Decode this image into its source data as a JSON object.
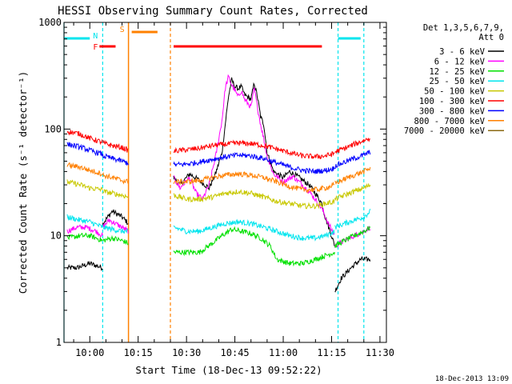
{
  "chart_data": {
    "type": "line",
    "title": "HESSI Observing Summary Count Rates, Corrected",
    "ylabel": "Corrected Count Rate (s⁻¹ detector⁻¹)",
    "xlabel": "Start Time (18-Dec-13 09:52:22)",
    "timestamp": "18-Dec-2013 13:09",
    "y_scale": "log",
    "ylim": [
      1,
      1000
    ],
    "xlim": [
      "09:52",
      "11:32"
    ],
    "y_ticks": [
      {
        "value": 1,
        "label": "1"
      },
      {
        "value": 10,
        "label": "10"
      },
      {
        "value": 100,
        "label": "100"
      },
      {
        "value": 1000,
        "label": "1000"
      }
    ],
    "x_ticks": [
      {
        "time": "10:00",
        "label": "10:00"
      },
      {
        "time": "10:15",
        "label": "10:15"
      },
      {
        "time": "10:30",
        "label": "10:30"
      },
      {
        "time": "10:45",
        "label": "10:45"
      },
      {
        "time": "11:00",
        "label": "11:00"
      },
      {
        "time": "11:15",
        "label": "11:15"
      },
      {
        "time": "11:30",
        "label": "11:30"
      }
    ],
    "legend": {
      "placement": "right",
      "header": [
        "Det 1,3,5,6,7,9,",
        "Att 0"
      ],
      "entries": [
        {
          "label": "3 - 6 keV",
          "color": "#000000"
        },
        {
          "label": "6 - 12 keV",
          "color": "#ff00ff"
        },
        {
          "label": "12 - 25 keV",
          "color": "#00e000"
        },
        {
          "label": "25 - 50 keV",
          "color": "#00e5ee"
        },
        {
          "label": "50 - 100 keV",
          "color": "#c8c800"
        },
        {
          "label": "100 - 300 keV",
          "color": "#ff0000"
        },
        {
          "label": "300 - 800 keV",
          "color": "#0000ff"
        },
        {
          "label": "800 - 7000 keV",
          "color": "#ff8000"
        },
        {
          "label": "7000 - 20000 keV",
          "color": "#8b6914"
        }
      ]
    },
    "flags": [
      {
        "label": "F",
        "color": "#ff0000",
        "segments": [
          [
            "10:03",
            "10:08"
          ],
          [
            "10:26",
            "11:12"
          ]
        ]
      },
      {
        "label": "N",
        "color": "#00e5ee",
        "segments": [
          [
            "09:52",
            "10:00"
          ],
          [
            "11:17",
            "11:24"
          ]
        ]
      },
      {
        "label": "S",
        "color": "#ff8000",
        "segments": [
          [
            "10:13",
            "10:21"
          ]
        ]
      }
    ],
    "periods": [
      {
        "kind": "night",
        "color": "#00e5ee",
        "ranges": [
          [
            "09:52",
            "10:04"
          ],
          [
            "11:17",
            "11:25"
          ]
        ]
      },
      {
        "kind": "saa",
        "color": "#ff8000",
        "ranges": [
          [
            "10:12",
            "10:25"
          ]
        ]
      }
    ],
    "data_gap": [
      "10:12",
      "10:26"
    ],
    "series": [
      {
        "name": "3 - 6 keV",
        "color": "#000000",
        "segments": [
          {
            "t": [
              "09:53",
              "09:56",
              "10:00",
              "10:04"
            ],
            "v": [
              5,
              5,
              5.5,
              5
            ]
          },
          {
            "t": [
              "10:04",
              "10:07",
              "10:10",
              "10:12"
            ],
            "v": [
              13,
              17,
              15,
              13
            ]
          },
          {
            "t": [
              "10:26",
              "10:28",
              "10:31",
              "10:34",
              "10:37",
              "10:39",
              "10:41",
              "10:42",
              "10:43",
              "10:44",
              "10:45",
              "10:46",
              "10:47",
              "10:48",
              "10:50",
              "10:51",
              "10:52",
              "10:53",
              "10:54",
              "10:55",
              "10:57",
              "11:00",
              "11:02",
              "11:05",
              "11:08",
              "11:10",
              "11:12",
              "11:13",
              "11:15",
              "11:16"
            ],
            "v": [
              35,
              30,
              38,
              33,
              28,
              38,
              60,
              110,
              200,
              290,
              250,
              240,
              250,
              210,
              190,
              270,
              200,
              130,
              110,
              60,
              40,
              35,
              40,
              35,
              30,
              25,
              20,
              15,
              10,
              8
            ]
          },
          {
            "t": [
              "11:16",
              "11:18",
              "11:21",
              "11:24",
              "11:27"
            ],
            "v": [
              3,
              4,
              5,
              6,
              6
            ]
          }
        ]
      },
      {
        "name": "6 - 12 keV",
        "color": "#ff00ff",
        "segments": [
          {
            "t": [
              "09:53",
              "09:56",
              "09:59",
              "10:02",
              "10:04"
            ],
            "v": [
              11,
              12,
              12,
              11,
              10
            ]
          },
          {
            "t": [
              "10:04",
              "10:06",
              "10:08",
              "10:10",
              "10:12"
            ],
            "v": [
              12,
              14,
              13,
              12,
              11
            ]
          },
          {
            "t": [
              "10:26",
              "10:28",
              "10:31",
              "10:33",
              "10:35",
              "10:37",
              "10:39",
              "10:41",
              "10:42",
              "10:43",
              "10:44",
              "10:45",
              "10:46",
              "10:47",
              "10:48",
              "10:50",
              "10:51",
              "10:52",
              "10:53",
              "10:54",
              "10:55",
              "10:57",
              "11:00",
              "11:03",
              "11:06",
              "11:09",
              "11:12",
              "11:14",
              "11:16"
            ],
            "v": [
              35,
              28,
              35,
              25,
              22,
              30,
              55,
              120,
              240,
              310,
              260,
              230,
              200,
              230,
              190,
              160,
              240,
              160,
              110,
              80,
              55,
              38,
              32,
              36,
              30,
              24,
              18,
              13,
              10
            ]
          },
          {
            "t": [
              "11:16",
              "11:19",
              "11:22",
              "11:25",
              "11:27"
            ],
            "v": [
              8,
              9,
              10,
              11,
              12
            ]
          }
        ]
      },
      {
        "name": "12 - 25 keV",
        "color": "#00e000",
        "segments": [
          {
            "t": [
              "09:53",
              "09:57",
              "10:00",
              "10:04"
            ],
            "v": [
              9.5,
              10,
              10,
              9
            ]
          },
          {
            "t": [
              "10:04",
              "10:07",
              "10:10",
              "10:12"
            ],
            "v": [
              9,
              9.5,
              9,
              8.5
            ]
          },
          {
            "t": [
              "10:26",
              "10:30",
              "10:34",
              "10:38",
              "10:41",
              "10:44",
              "10:47",
              "10:50",
              "10:53",
              "10:56",
              "10:58"
            ],
            "v": [
              7,
              7,
              7,
              8.5,
              10,
              11.5,
              11,
              10.5,
              9.5,
              8,
              6
            ]
          },
          {
            "t": [
              "10:58",
              "11:02",
              "11:06",
              "11:10",
              "11:13",
              "11:16"
            ],
            "v": [
              6,
              5.5,
              5.5,
              6,
              6.5,
              7
            ]
          },
          {
            "t": [
              "11:16",
              "11:19",
              "11:22",
              "11:25",
              "11:27"
            ],
            "v": [
              8,
              9,
              10,
              11,
              12
            ]
          }
        ]
      },
      {
        "name": "25 - 50 keV",
        "color": "#00e5ee",
        "segments": [
          {
            "t": [
              "09:53",
              "09:57",
              "10:00",
              "10:04"
            ],
            "v": [
              15,
              14,
              13.5,
              12
            ]
          },
          {
            "t": [
              "10:04",
              "10:07",
              "10:10",
              "10:12"
            ],
            "v": [
              12,
              11.5,
              11,
              11
            ]
          },
          {
            "t": [
              "10:26",
              "10:30",
              "10:34",
              "10:38",
              "10:42",
              "10:46",
              "10:50",
              "10:54",
              "10:58",
              "11:02",
              "11:06",
              "11:10",
              "11:13",
              "11:16"
            ],
            "v": [
              12,
              11,
              11,
              12,
              13,
              13.5,
              13,
              12,
              11,
              10,
              9.5,
              9.5,
              10,
              11
            ]
          },
          {
            "t": [
              "11:16",
              "11:19",
              "11:22",
              "11:25",
              "11:27"
            ],
            "v": [
              12,
              13,
              14,
              15,
              17
            ]
          }
        ]
      },
      {
        "name": "50 - 100 keV",
        "color": "#c8c800",
        "segments": [
          {
            "t": [
              "09:53",
              "09:57",
              "10:00",
              "10:04"
            ],
            "v": [
              32,
              30,
              28,
              27
            ]
          },
          {
            "t": [
              "10:04",
              "10:07",
              "10:10",
              "10:12"
            ],
            "v": [
              26,
              25,
              24,
              23
            ]
          },
          {
            "t": [
              "10:26",
              "10:30",
              "10:34",
              "10:38",
              "10:42",
              "10:46",
              "10:50",
              "10:54",
              "10:58",
              "11:02",
              "11:06",
              "11:10",
              "11:13",
              "11:16"
            ],
            "v": [
              24,
              22,
              22,
              23,
              25,
              26,
              25,
              23,
              21,
              20,
              19,
              19,
              20,
              21
            ]
          },
          {
            "t": [
              "11:16",
              "11:19",
              "11:22",
              "11:25",
              "11:27"
            ],
            "v": [
              22,
              24,
              26,
              28,
              30
            ]
          }
        ]
      },
      {
        "name": "100 - 300 keV",
        "color": "#ff0000",
        "segments": [
          {
            "t": [
              "09:53",
              "09:57",
              "10:00",
              "10:04"
            ],
            "v": [
              95,
              90,
              82,
              75
            ]
          },
          {
            "t": [
              "10:04",
              "10:07",
              "10:10",
              "10:12"
            ],
            "v": [
              74,
              70,
              67,
              63
            ]
          },
          {
            "t": [
              "10:26",
              "10:30",
              "10:34",
              "10:38",
              "10:42",
              "10:46",
              "10:50",
              "10:54",
              "10:58",
              "11:02",
              "11:06",
              "11:10",
              "11:13",
              "11:16"
            ],
            "v": [
              62,
              64,
              66,
              70,
              72,
              74,
              73,
              70,
              65,
              60,
              56,
              55,
              56,
              59
            ]
          },
          {
            "t": [
              "11:16",
              "11:19",
              "11:22",
              "11:25",
              "11:27"
            ],
            "v": [
              61,
              66,
              72,
              78,
              83
            ]
          }
        ]
      },
      {
        "name": "300 - 800 keV",
        "color": "#0000ff",
        "segments": [
          {
            "t": [
              "09:53",
              "09:57",
              "10:00",
              "10:04"
            ],
            "v": [
              72,
              68,
              63,
              58
            ]
          },
          {
            "t": [
              "10:04",
              "10:07",
              "10:10",
              "10:12"
            ],
            "v": [
              56,
              53,
              50,
              48
            ]
          },
          {
            "t": [
              "10:26",
              "10:30",
              "10:34",
              "10:38",
              "10:42",
              "10:46",
              "10:50",
              "10:54",
              "10:58",
              "11:02",
              "11:06",
              "11:10",
              "11:13",
              "11:16"
            ],
            "v": [
              46,
              47,
              49,
              52,
              55,
              57,
              56,
              53,
              48,
              44,
              41,
              40,
              41,
              43
            ]
          },
          {
            "t": [
              "11:16",
              "11:19",
              "11:22",
              "11:25",
              "11:27"
            ],
            "v": [
              45,
              49,
              53,
              57,
              61
            ]
          }
        ]
      },
      {
        "name": "800 - 7000 keV",
        "color": "#ff8000",
        "segments": [
          {
            "t": [
              "09:53",
              "09:57",
              "10:00",
              "10:04"
            ],
            "v": [
              46,
              44,
              41,
              38
            ]
          },
          {
            "t": [
              "10:04",
              "10:07",
              "10:10",
              "10:12"
            ],
            "v": [
              37,
              35,
              33,
              32
            ]
          },
          {
            "t": [
              "10:26",
              "10:30",
              "10:34",
              "10:38",
              "10:42",
              "10:46",
              "10:50",
              "10:54",
              "10:58",
              "11:02",
              "11:06",
              "11:10",
              "11:13",
              "11:16"
            ],
            "v": [
              32,
              32,
              33,
              35,
              37,
              38,
              37,
              35,
              32,
              29,
              27,
              27,
              28,
              30
            ]
          },
          {
            "t": [
              "11:16",
              "11:19",
              "11:22",
              "11:25",
              "11:27"
            ],
            "v": [
              31,
              34,
              37,
              40,
              43
            ]
          }
        ]
      }
    ]
  }
}
